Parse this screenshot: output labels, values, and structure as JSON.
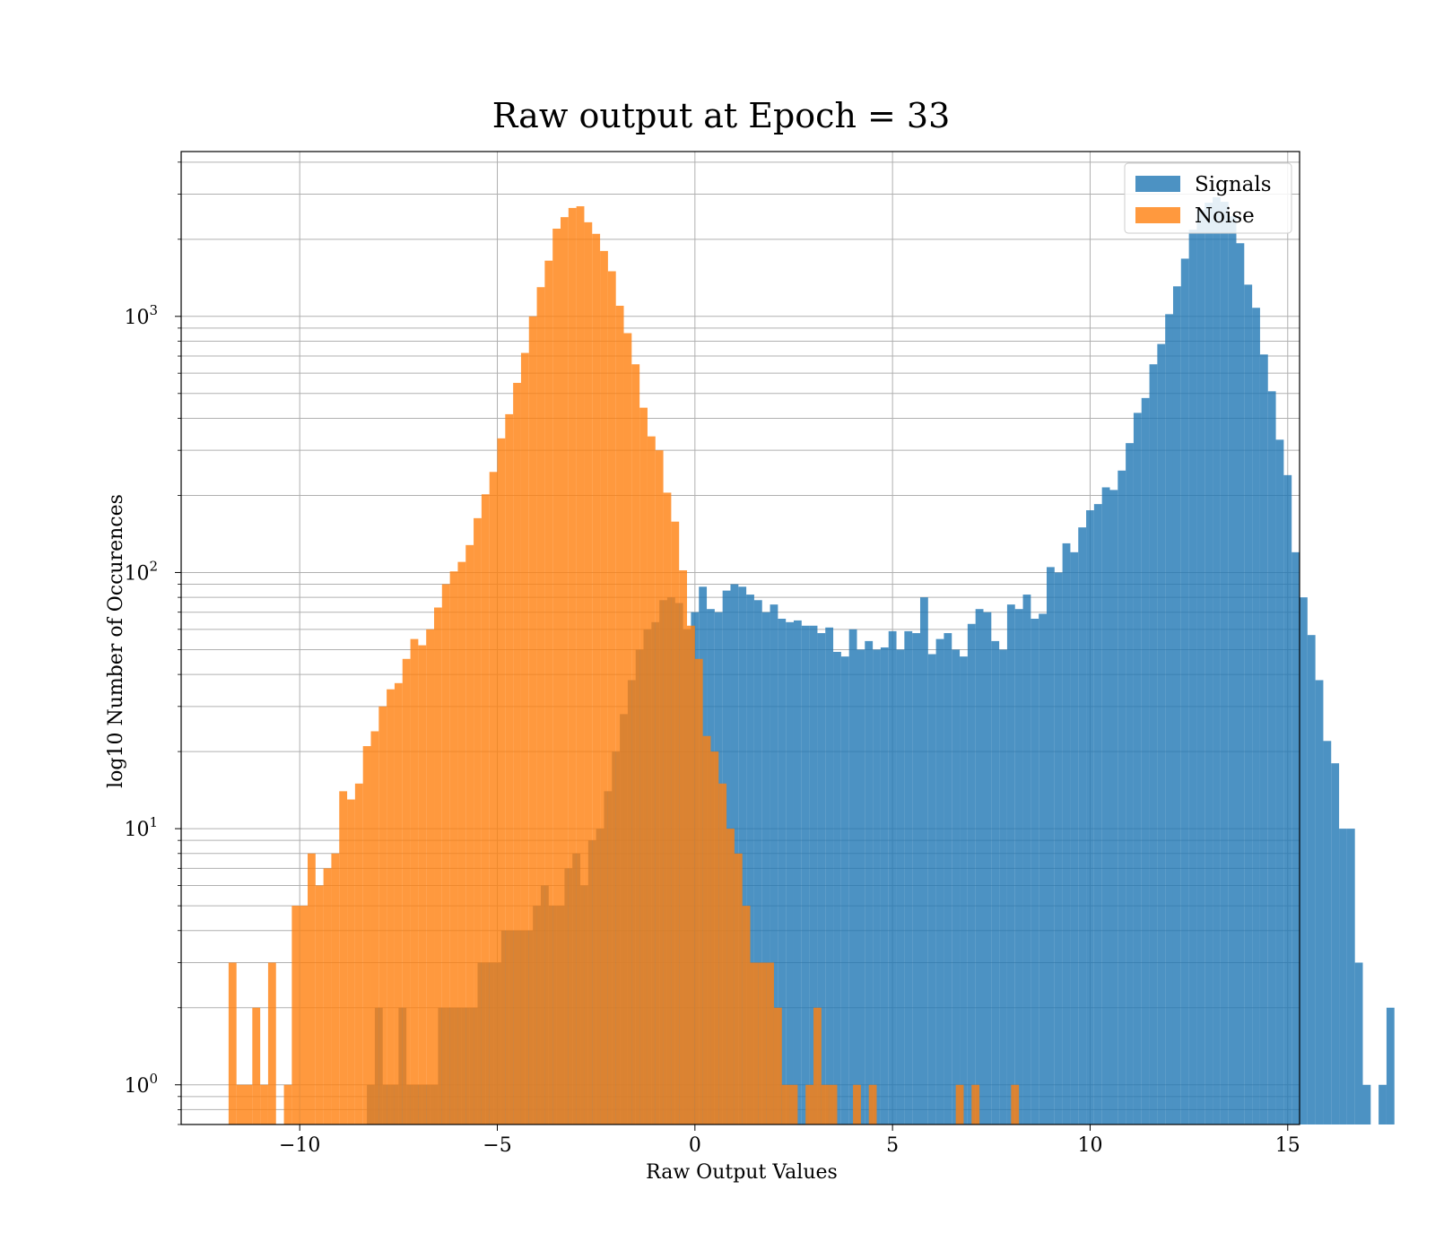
{
  "chart_data": {
    "type": "histogram",
    "title": "Raw output at Epoch = 33",
    "xlabel": "Raw Output Values",
    "ylabel": "log10 Number of Occurences",
    "xlim": [
      -13,
      15.3
    ],
    "ylim": [
      0.7,
      4400
    ],
    "yscale": "log",
    "grid": true,
    "legend_position": "top-right",
    "x_ticks": [
      -10,
      -5,
      0,
      5,
      10,
      15
    ],
    "x_tick_labels": [
      "−10",
      "−5",
      "0",
      "5",
      "10",
      "15"
    ],
    "y_ticks": [
      1,
      10,
      100,
      1000
    ],
    "y_tick_labels": [
      {
        "base": "10",
        "exp": "0"
      },
      {
        "base": "10",
        "exp": "1"
      },
      {
        "base": "10",
        "exp": "2"
      },
      {
        "base": "10",
        "exp": "3"
      }
    ],
    "series": [
      {
        "name": "Signals",
        "color": "#1f77b4",
        "opacity": 0.8,
        "bin_start": -8.3,
        "bin_width": 0.2,
        "counts": [
          1,
          2,
          1,
          1,
          2,
          1,
          1,
          1,
          1,
          2,
          2,
          2,
          2,
          2,
          3,
          3,
          3,
          4,
          4,
          4,
          4,
          5,
          6,
          5,
          5,
          7,
          8,
          6,
          9,
          10,
          14,
          20,
          28,
          38,
          50,
          60,
          64,
          78,
          80,
          76,
          60,
          70,
          88,
          72,
          70,
          85,
          90,
          88,
          82,
          78,
          70,
          75,
          66,
          64,
          65,
          62,
          62,
          58,
          61,
          49,
          47,
          60,
          50,
          54,
          50,
          51,
          59,
          50,
          59,
          58,
          80,
          48,
          55,
          58,
          50,
          47,
          63,
          72,
          70,
          54,
          50,
          75,
          72,
          82,
          66,
          69,
          105,
          100,
          130,
          120,
          150,
          175,
          185,
          215,
          210,
          250,
          320,
          420,
          480,
          650,
          780,
          1020,
          1310,
          1680,
          2180,
          2610,
          2780,
          2920,
          2800,
          2460,
          1930,
          1330,
          1080,
          710,
          510,
          330,
          240,
          120,
          80,
          57,
          38,
          22,
          18,
          10,
          10,
          3,
          1,
          0,
          1,
          2
        ]
      },
      {
        "name": "Noise",
        "color": "#ff7f0e",
        "opacity": 0.8,
        "bin_start": -11.8,
        "bin_width": 0.2,
        "counts": [
          3,
          1,
          1,
          2,
          1,
          3,
          0,
          1,
          5,
          5,
          8,
          6,
          7,
          8,
          14,
          13,
          15,
          21,
          24,
          30,
          35,
          37,
          46,
          55,
          52,
          60,
          73,
          90,
          101,
          110,
          128,
          163,
          202,
          247,
          334,
          415,
          550,
          720,
          1000,
          1300,
          1650,
          2200,
          2440,
          2650,
          2690,
          2330,
          2100,
          1800,
          1500,
          1100,
          860,
          650,
          440,
          340,
          300,
          205,
          158,
          102,
          62,
          46,
          23,
          20,
          15,
          10,
          8,
          5,
          3,
          3,
          3,
          2,
          1,
          1,
          0,
          1,
          2,
          1,
          1,
          0,
          0,
          1,
          0,
          1,
          0,
          0,
          0,
          0,
          0,
          0,
          0,
          0,
          0,
          0,
          1,
          0,
          1,
          0,
          0,
          0,
          0,
          1
        ]
      }
    ]
  }
}
